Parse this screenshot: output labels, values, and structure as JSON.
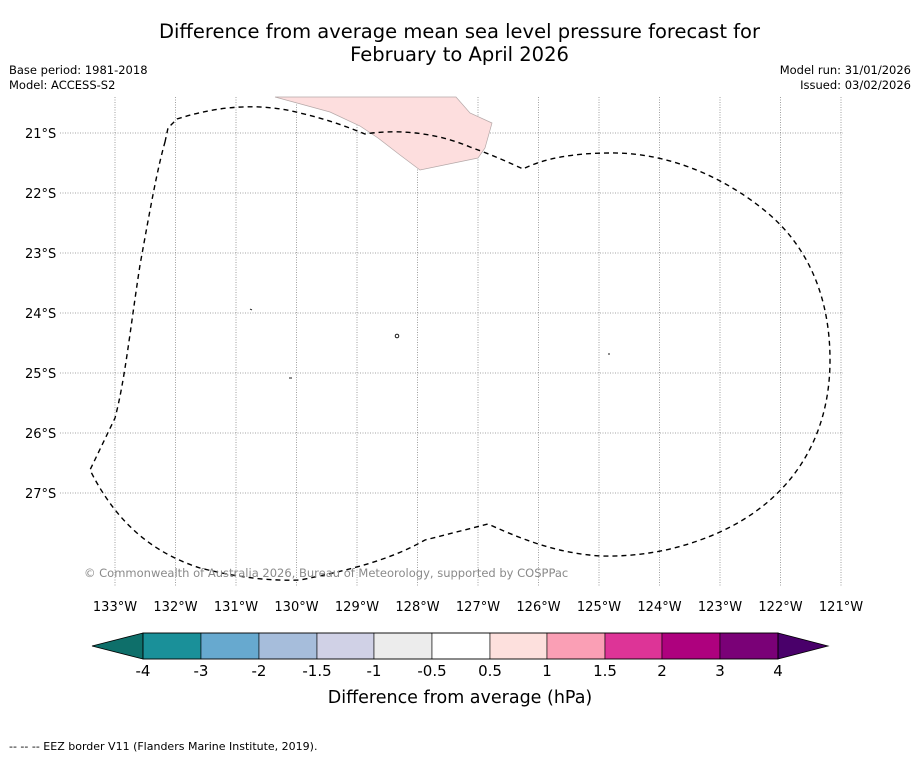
{
  "header": {
    "title_line1": "Difference from average mean sea level pressure forecast for",
    "title_line2": "February to April 2026",
    "base_period": "Base period: 1981-2018",
    "model": "Model: ACCESS-S2",
    "model_run": "Model run: 31/01/2026",
    "issued": "Issued: 03/02/2026"
  },
  "map": {
    "lon_labels": [
      "133°W",
      "132°W",
      "131°W",
      "130°W",
      "129°W",
      "128°W",
      "127°W",
      "126°W",
      "125°W",
      "124°W",
      "123°W",
      "122°W",
      "121°W"
    ],
    "lat_labels": [
      "21°S",
      "22°S",
      "23°S",
      "24°S",
      "25°S",
      "26°S",
      "27°S"
    ],
    "copyright": "© Commonwealth of Australia 2026, Bureau of Meteorology, supported by COSPPac",
    "anomaly_region_color": "#fddede"
  },
  "colorbar": {
    "ticks": [
      "-4",
      "-3",
      "-2",
      "-1.5",
      "-1",
      "-0.5",
      "0.5",
      "1",
      "1.5",
      "2",
      "3",
      "4"
    ],
    "colors": [
      "#0e6f6a",
      "#1a9099",
      "#67a9cf",
      "#a6bddb",
      "#d0d1e6",
      "#ececec",
      "#ffffff",
      "#fde0dd",
      "#fa9fb5",
      "#dd3497",
      "#ae017e",
      "#7a0177",
      "#49006a"
    ],
    "label": "Difference from average (hPa)"
  },
  "footer": {
    "legend_text": "--  --  -- EEZ border V11 (Flanders Marine Institute, 2019)."
  }
}
